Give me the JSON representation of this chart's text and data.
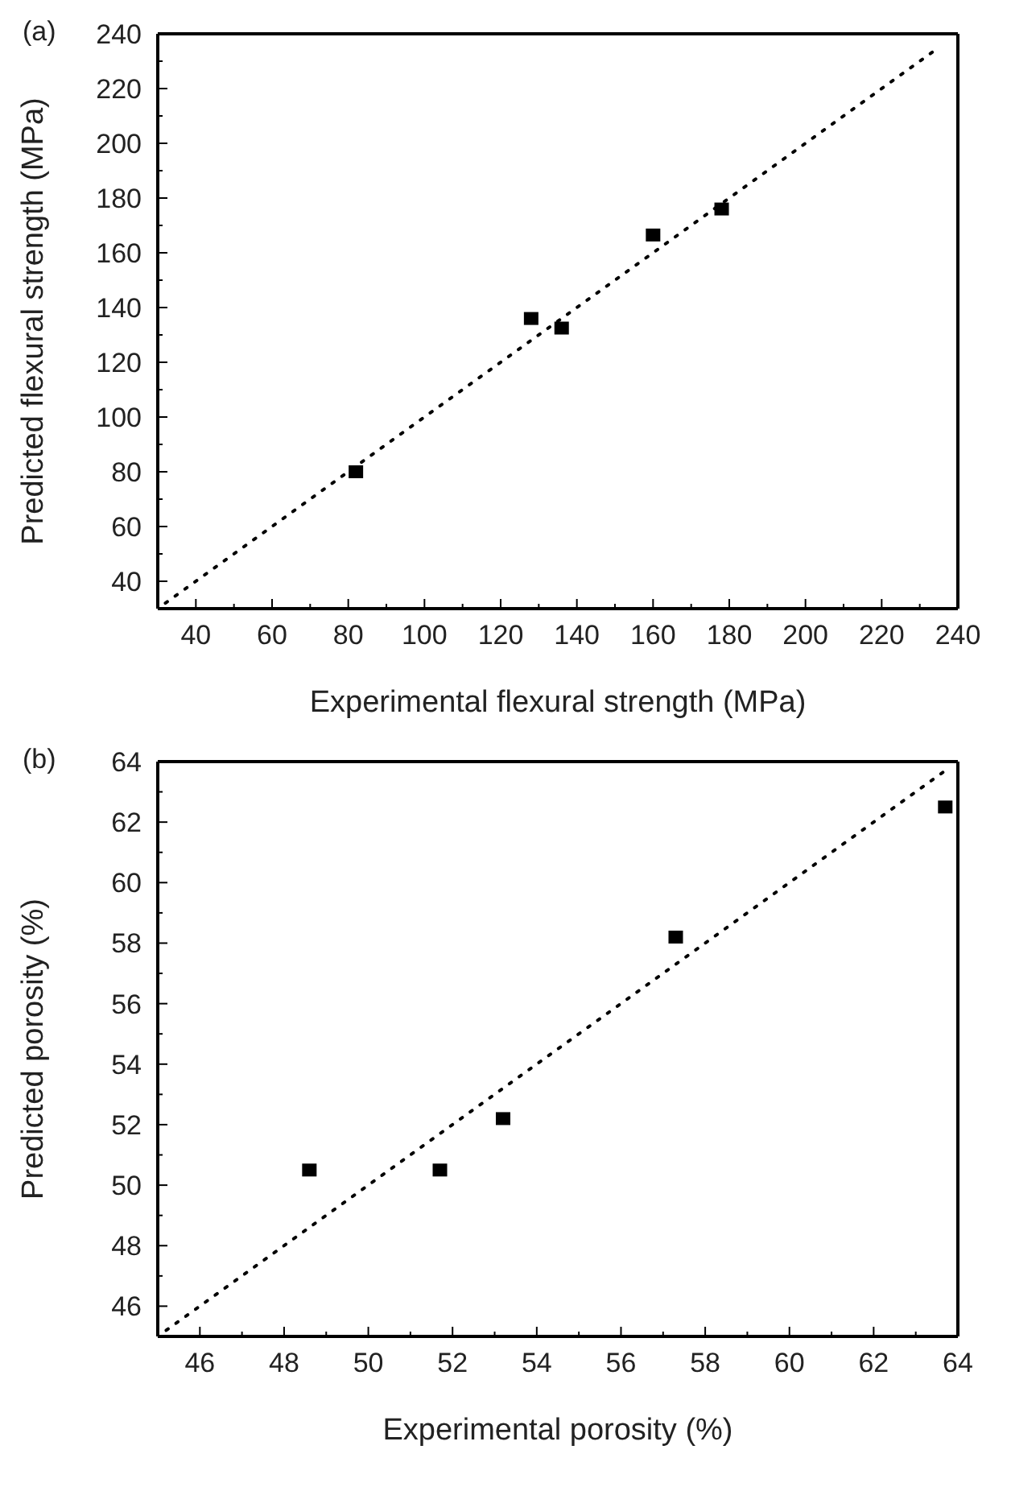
{
  "chart_data": [
    {
      "type": "scatter",
      "title": "(a)",
      "xlabel": "Experimental flexural strength (MPa)",
      "ylabel": "Predicted flexural strength (MPa)",
      "xlim": [
        30,
        240
      ],
      "ylim": [
        30,
        240
      ],
      "xticks": [
        40,
        {
          "value": 50,
          "label": null
        },
        60,
        {
          "value": 70,
          "label": null
        },
        80,
        {
          "value": 90,
          "label": null
        },
        100,
        {
          "value": 110,
          "label": null
        },
        120,
        {
          "value": 130,
          "label": null
        },
        140,
        {
          "value": 150,
          "label": null
        },
        160,
        {
          "value": 170,
          "label": null
        },
        180,
        {
          "value": 190,
          "label": null
        },
        200,
        {
          "value": 210,
          "label": null
        },
        220,
        {
          "value": 230,
          "label": null
        },
        240
      ],
      "yticks": [
        40,
        {
          "value": 50,
          "label": null
        },
        60,
        {
          "value": 70,
          "label": null
        },
        80,
        {
          "value": 90,
          "label": null
        },
        100,
        {
          "value": 110,
          "label": null
        },
        120,
        {
          "value": 130,
          "label": null
        },
        140,
        {
          "value": 150,
          "label": null
        },
        160,
        {
          "value": 170,
          "label": null
        },
        180,
        {
          "value": 190,
          "label": null
        },
        200,
        {
          "value": 210,
          "label": null
        },
        220,
        {
          "value": 230,
          "label": null
        },
        240
      ],
      "series": [
        {
          "type": "scatter",
          "color": "#000000",
          "marker": "square",
          "x": [
            82,
            128,
            136,
            160,
            178
          ],
          "values": [
            80,
            136,
            132.5,
            166.5,
            176
          ]
        },
        {
          "type": "line",
          "color": "#000000",
          "marker": "none",
          "line_style": "dotted",
          "x": [
            32,
            235
          ],
          "values": [
            32,
            235
          ]
        }
      ]
    },
    {
      "type": "scatter",
      "title": "(b)",
      "xlabel": "Experimental porosity (%)",
      "ylabel": "Predicted porosity (%)",
      "xlim": [
        45,
        64
      ],
      "ylim": [
        45,
        64
      ],
      "xticks": [
        46,
        {
          "value": 47,
          "label": null
        },
        48,
        {
          "value": 49,
          "label": null
        },
        50,
        {
          "value": 51,
          "label": null
        },
        52,
        {
          "value": 53,
          "label": null
        },
        54,
        {
          "value": 55,
          "label": null
        },
        56,
        {
          "value": 57,
          "label": null
        },
        58,
        {
          "value": 59,
          "label": null
        },
        60,
        {
          "value": 61,
          "label": null
        },
        62,
        {
          "value": 63,
          "label": null
        },
        64
      ],
      "yticks": [
        46,
        {
          "value": 47,
          "label": null
        },
        48,
        {
          "value": 49,
          "label": null
        },
        50,
        {
          "value": 51,
          "label": null
        },
        52,
        {
          "value": 53,
          "label": null
        },
        54,
        {
          "value": 55,
          "label": null
        },
        56,
        {
          "value": 57,
          "label": null
        },
        58,
        {
          "value": 59,
          "label": null
        },
        60,
        {
          "value": 61,
          "label": null
        },
        62,
        {
          "value": 63,
          "label": null
        },
        64
      ],
      "series": [
        {
          "type": "scatter",
          "color": "#000000",
          "marker": "square",
          "x": [
            48.6,
            51.7,
            53.2,
            57.3,
            63.7
          ],
          "values": [
            50.5,
            50.5,
            52.2,
            58.2,
            62.5
          ]
        },
        {
          "type": "line",
          "color": "#000000",
          "marker": "none",
          "line_style": "dotted",
          "x": [
            45.2,
            63.7
          ],
          "values": [
            45.2,
            63.7
          ]
        }
      ]
    }
  ]
}
